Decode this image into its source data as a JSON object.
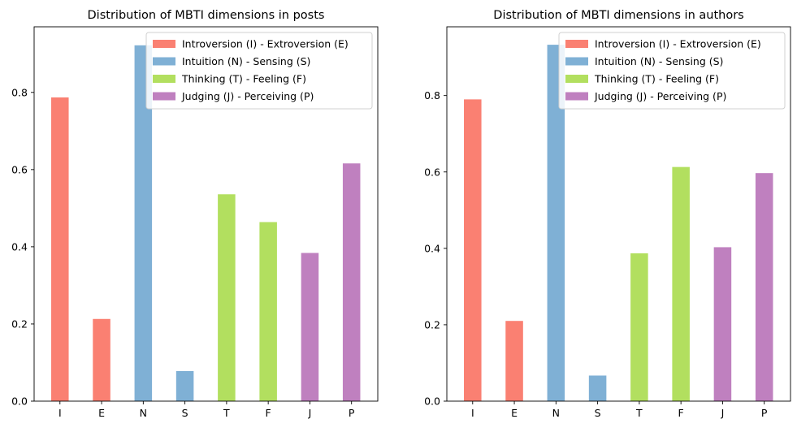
{
  "chart_data": [
    {
      "type": "bar",
      "title": "Distribution of MBTI dimensions in posts",
      "xlabel": "",
      "ylabel": "",
      "categories": [
        "I",
        "E",
        "N",
        "S",
        "T",
        "F",
        "J",
        "P"
      ],
      "values": [
        0.787,
        0.213,
        0.922,
        0.078,
        0.536,
        0.464,
        0.384,
        0.616
      ],
      "bar_colors": [
        "#fa8072",
        "#fa8072",
        "#7fb0d5",
        "#7fb0d5",
        "#b2df5f",
        "#b2df5f",
        "#bf80bf",
        "#bf80bf"
      ],
      "ylim": [
        0,
        0.97
      ],
      "yticks": [
        0.0,
        0.2,
        0.4,
        0.6,
        0.8
      ],
      "ytick_labels": [
        "0.0",
        "0.2",
        "0.4",
        "0.6",
        "0.8"
      ],
      "grid": false,
      "legend": {
        "placement": "top-right",
        "entries": [
          {
            "label": "Introversion (I) - Extroversion (E)",
            "color": "#fa8072"
          },
          {
            "label": "Intuition (N) - Sensing (S)",
            "color": "#7fb0d5"
          },
          {
            "label": "Thinking (T) - Feeling (F)",
            "color": "#b2df5f"
          },
          {
            "label": "Judging (J) - Perceiving (P)",
            "color": "#bf80bf"
          }
        ]
      }
    },
    {
      "type": "bar",
      "title": "Distribution of MBTI dimensions in authors",
      "xlabel": "",
      "ylabel": "",
      "categories": [
        "I",
        "E",
        "N",
        "S",
        "T",
        "F",
        "J",
        "P"
      ],
      "values": [
        0.79,
        0.21,
        0.933,
        0.067,
        0.387,
        0.613,
        0.403,
        0.597
      ],
      "bar_colors": [
        "#fa8072",
        "#fa8072",
        "#7fb0d5",
        "#7fb0d5",
        "#b2df5f",
        "#b2df5f",
        "#bf80bf",
        "#bf80bf"
      ],
      "ylim": [
        0,
        0.98
      ],
      "yticks": [
        0.0,
        0.2,
        0.4,
        0.6,
        0.8
      ],
      "ytick_labels": [
        "0.0",
        "0.2",
        "0.4",
        "0.6",
        "0.8"
      ],
      "grid": false,
      "legend": {
        "placement": "top-right",
        "entries": [
          {
            "label": "Introversion (I) - Extroversion (E)",
            "color": "#fa8072"
          },
          {
            "label": "Intuition (N) - Sensing (S)",
            "color": "#7fb0d5"
          },
          {
            "label": "Thinking (T) - Feeling (F)",
            "color": "#b2df5f"
          },
          {
            "label": "Judging (J) - Perceiving (P)",
            "color": "#bf80bf"
          }
        ]
      }
    }
  ]
}
